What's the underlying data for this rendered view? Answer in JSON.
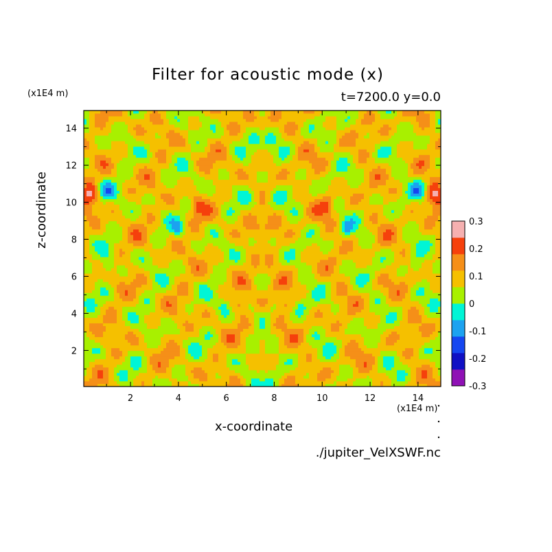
{
  "chart_data": {
    "type": "heatmap",
    "title": "Filter for acoustic mode (x)",
    "subtitle": "t=7200.0 y=0.0",
    "xlabel": "x-coordinate",
    "ylabel": "z-coordinate",
    "x_unit": "(x1E4 m)",
    "y_unit": "(x1E4 m)",
    "source": "./jupiter_VelXSWF.nc",
    "xlim": [
      0.05,
      14.95
    ],
    "ylim": [
      0.05,
      14.95
    ],
    "xticks": [
      "2",
      "4",
      "6",
      "8",
      "10",
      "12",
      "14"
    ],
    "yticks": [
      "2",
      "4",
      "6",
      "8",
      "10",
      "12",
      "14"
    ],
    "xtick_values": [
      2,
      4,
      6,
      8,
      10,
      12,
      14
    ],
    "ytick_values": [
      2,
      4,
      6,
      8,
      10,
      12,
      14
    ],
    "symmetry": "mirror about x=7.5",
    "colorbar": {
      "labels": [
        "0.3",
        "0.2",
        "0.1",
        "0",
        "-0.1",
        "-0.2",
        "-0.3"
      ],
      "levels": [
        -0.3,
        -0.25,
        -0.2,
        -0.15,
        -0.1,
        -0.05,
        0,
        0.05,
        0.1,
        0.15,
        0.2,
        0.25,
        0.3
      ],
      "colors": [
        "#8f11b5",
        "#1010c4",
        "#1546f0",
        "#1ca2f0",
        "#00f5d6",
        "#a8f000",
        "#f5c000",
        "#f58f18",
        "#f5400c",
        "#f5b0b0"
      ]
    },
    "dominant_levels": [
      "-0.05 to 0 (cyan-green)",
      "0 to 0.05 (yellow-green)"
    ]
  }
}
